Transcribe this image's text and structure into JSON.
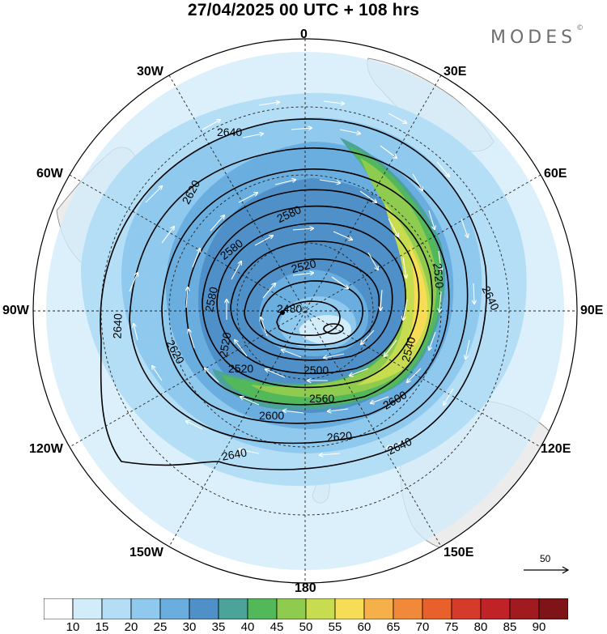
{
  "title": "27/04/2025  00 UTC  + 108 hrs",
  "brand": {
    "name": "MODES",
    "mark": "©"
  },
  "longitude_labels": {
    "n0": "0",
    "w30": "30W",
    "e30": "30E",
    "w60": "60W",
    "e60": "60E",
    "w90": "90W",
    "e90": "90E",
    "w120": "120W",
    "e120": "120E",
    "w150": "150W",
    "e150": "150E",
    "s180": "180"
  },
  "contour_labels": [
    {
      "text": "2640"
    },
    {
      "text": "2620"
    },
    {
      "text": "2580"
    },
    {
      "text": "2580"
    },
    {
      "text": "2580"
    },
    {
      "text": "2520"
    },
    {
      "text": "2480"
    },
    {
      "text": "2640"
    },
    {
      "text": "2620"
    },
    {
      "text": "2520"
    },
    {
      "text": "2500"
    },
    {
      "text": "2560"
    },
    {
      "text": "2600"
    },
    {
      "text": "2600"
    },
    {
      "text": "2620"
    },
    {
      "text": "2640"
    },
    {
      "text": "2640"
    },
    {
      "text": "2640"
    },
    {
      "text": "2520"
    },
    {
      "text": "2540"
    },
    {
      "text": "2520"
    }
  ],
  "reference_vector": {
    "label": "50"
  },
  "colorbar": {
    "colors": [
      "#ffffff",
      "#d2ecfa",
      "#b4def6",
      "#8fc9ee",
      "#6aaee0",
      "#4f90c8",
      "#4ca39a",
      "#52b85a",
      "#8fcb4f",
      "#c8dc50",
      "#f7dd55",
      "#f6b04a",
      "#f08a3a",
      "#e8602c",
      "#d63a2a",
      "#c02228",
      "#a01a20",
      "#7e1418"
    ],
    "labels": [
      "10",
      "15",
      "20",
      "25",
      "30",
      "35",
      "40",
      "45",
      "50",
      "55",
      "60",
      "65",
      "70",
      "75",
      "80",
      "85",
      "90"
    ]
  }
}
